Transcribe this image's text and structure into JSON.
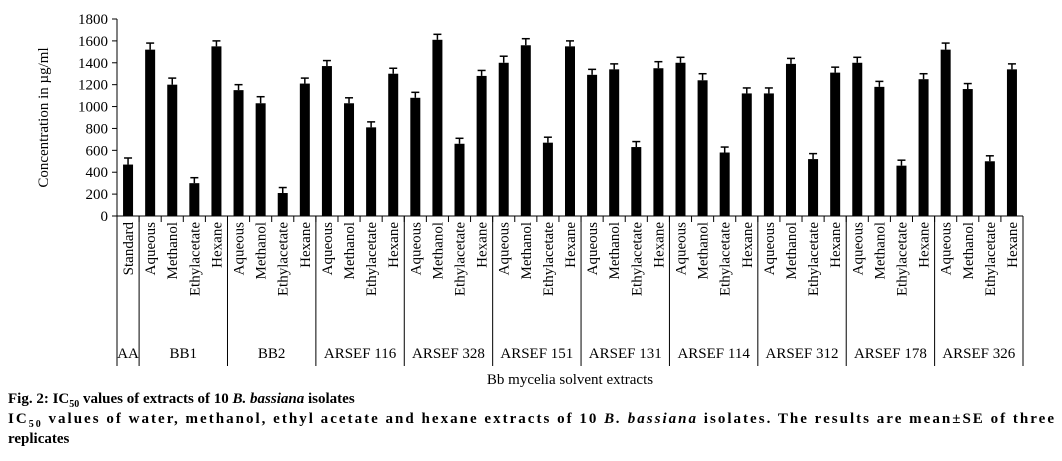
{
  "chart_data": {
    "type": "bar",
    "color": "#000000",
    "y_axis_label": "Concentration in µg/ml",
    "x_axis_label": "Bb mycelia solvent extracts",
    "ylim": [
      0,
      1800
    ],
    "yticks": [
      0,
      200,
      400,
      600,
      800,
      1000,
      1200,
      1400,
      1600,
      1800
    ],
    "groups": [
      {
        "name": "AA",
        "categories": [
          "Standard"
        ],
        "values": [
          470
        ],
        "errors": [
          60
        ]
      },
      {
        "name": "BB1",
        "categories": [
          "Aqueous",
          "Methanol",
          "Ethylacetate",
          "Hexane"
        ],
        "values": [
          1520,
          1200,
          300,
          1550
        ],
        "errors": [
          60,
          60,
          50,
          50
        ]
      },
      {
        "name": "BB2",
        "categories": [
          "Aqueous",
          "Methanol",
          "Ethylacetate",
          "Hexane"
        ],
        "values": [
          1150,
          1030,
          210,
          1210
        ],
        "errors": [
          50,
          60,
          50,
          50
        ]
      },
      {
        "name": "ARSEF 116",
        "categories": [
          "Aqueous",
          "Methanol",
          "Ethylacetate",
          "Hexane"
        ],
        "values": [
          1370,
          1030,
          810,
          1300
        ],
        "errors": [
          50,
          50,
          50,
          50
        ]
      },
      {
        "name": "ARSEF 328",
        "categories": [
          "Aqueous",
          "Methanol",
          "Ethylacetate",
          "Hexane"
        ],
        "values": [
          1080,
          1610,
          660,
          1280
        ],
        "errors": [
          50,
          50,
          50,
          50
        ]
      },
      {
        "name": "ARSEF 151",
        "categories": [
          "Aqueous",
          "Methanol",
          "Ethylacetate",
          "Hexane"
        ],
        "values": [
          1400,
          1560,
          670,
          1550
        ],
        "errors": [
          60,
          60,
          50,
          50
        ]
      },
      {
        "name": "ARSEF 131",
        "categories": [
          "Aqueous",
          "Methanol",
          "Ethylacetate",
          "Hexane"
        ],
        "values": [
          1290,
          1340,
          630,
          1350
        ],
        "errors": [
          50,
          50,
          50,
          60
        ]
      },
      {
        "name": "ARSEF 114",
        "categories": [
          "Aqueous",
          "Methanol",
          "Ethylacetate",
          "Hexane"
        ],
        "values": [
          1400,
          1240,
          580,
          1120
        ],
        "errors": [
          50,
          60,
          50,
          50
        ]
      },
      {
        "name": "ARSEF 312",
        "categories": [
          "Aqueous",
          "Methanol",
          "Ethylacetate",
          "Hexane"
        ],
        "values": [
          1120,
          1390,
          520,
          1310
        ],
        "errors": [
          50,
          50,
          50,
          50
        ]
      },
      {
        "name": "ARSEF 178",
        "categories": [
          "Aqueous",
          "Methanol",
          "Ethylacetate",
          "Hexane"
        ],
        "values": [
          1400,
          1180,
          460,
          1250
        ],
        "errors": [
          50,
          50,
          50,
          50
        ]
      },
      {
        "name": "ARSEF 326",
        "categories": [
          "Aqueous",
          "Methanol",
          "Ethylacetate",
          "Hexane"
        ],
        "values": [
          1520,
          1160,
          500,
          1340
        ],
        "errors": [
          60,
          50,
          50,
          50
        ]
      }
    ]
  },
  "caption": {
    "line1": [
      "Fig. 2: IC",
      "50",
      " values of extracts of 10 ",
      "B. bassiana",
      " isolates"
    ],
    "line2": [
      "IC",
      "50",
      " values of water, methanol, ethyl acetate and hexane extracts of 10 ",
      "B. bassiana",
      " isolates. The results are mean±SE of three"
    ],
    "line3": "replicates"
  }
}
